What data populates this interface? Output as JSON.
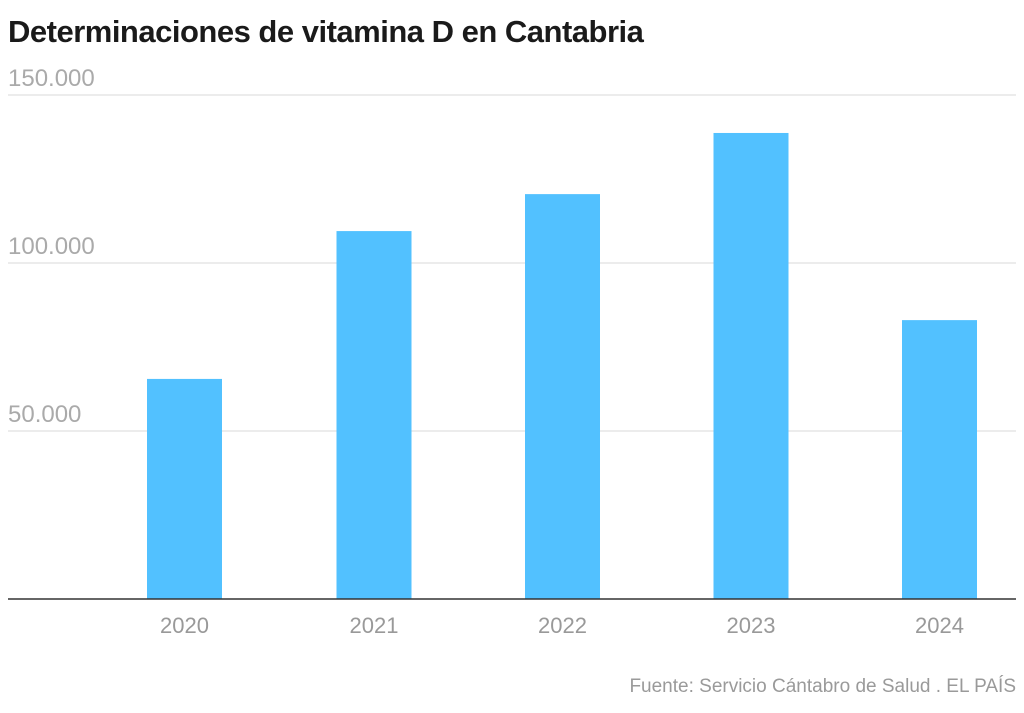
{
  "chart_data": {
    "type": "bar",
    "title": "Determinaciones de vitamina D en Cantabria",
    "xlabel": "",
    "ylabel": "",
    "categories": [
      "2020",
      "2021",
      "2022",
      "2023",
      "2024"
    ],
    "values": [
      65500,
      109500,
      120500,
      138700,
      83000
    ],
    "ylim": [
      0,
      150000
    ],
    "yticks": [
      50000,
      100000,
      150000
    ],
    "ytick_labels": [
      "50.000",
      "100.000",
      "150.000"
    ],
    "grid": true,
    "bar_color": "#52c1ff",
    "source": "Fuente: Servicio Cántabro de Salud . EL PAÍS"
  }
}
